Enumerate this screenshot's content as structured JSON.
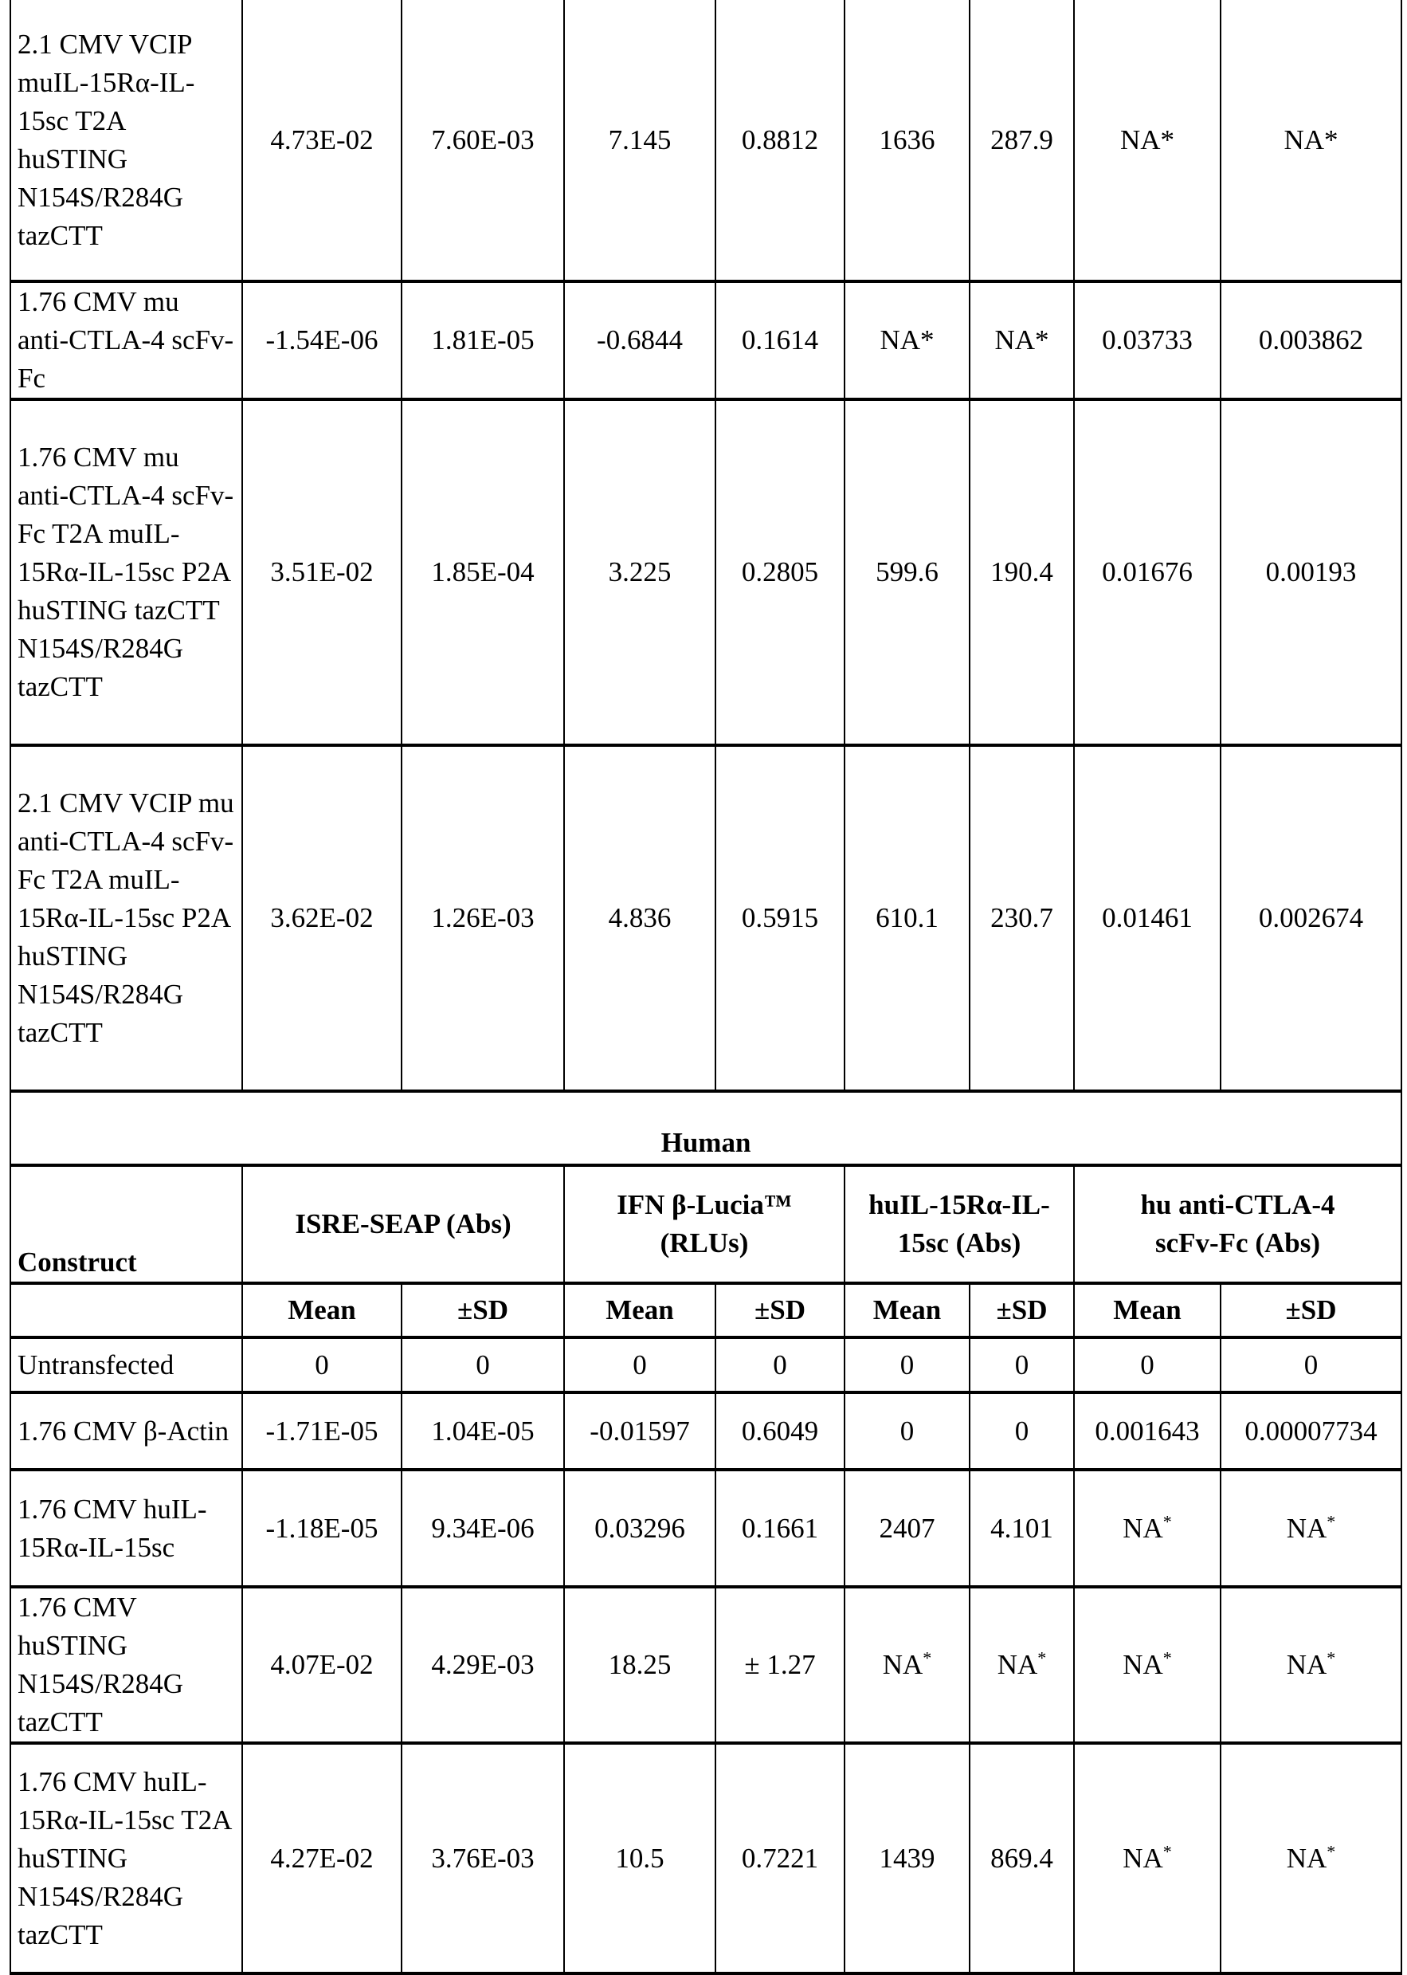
{
  "mouse_rows": [
    {
      "construct": "2.1 CMV VCIP muIL-15Rα-IL-15sc T2A huSTING N154S/R284G tazCTT",
      "values": [
        "4.73E-02",
        "7.60E-03",
        "7.145",
        "0.8812",
        "1636",
        "287.9",
        "NA*",
        "NA*"
      ]
    },
    {
      "construct": "1.76 CMV mu anti-CTLA-4 scFv-Fc",
      "values": [
        "-1.54E-06",
        "1.81E-05",
        "-0.6844",
        "0.1614",
        "NA*",
        "NA*",
        "0.03733",
        "0.003862"
      ]
    },
    {
      "construct": "1.76 CMV mu anti-CTLA-4 scFv-Fc T2A muIL-15Rα-IL-15sc P2A huSTING tazCTT N154S/R284G tazCTT",
      "values": [
        "3.51E-02",
        "1.85E-04",
        "3.225",
        "0.2805",
        "599.6",
        "190.4",
        "0.01676",
        "0.00193"
      ]
    },
    {
      "construct": "2.1 CMV VCIP mu anti-CTLA-4 scFv-Fc T2A muIL-15Rα-IL-15sc P2A huSTING N154S/R284G tazCTT",
      "values": [
        "3.62E-02",
        "1.26E-03",
        "4.836",
        "0.5915",
        "610.1",
        "230.7",
        "0.01461",
        "0.002674"
      ]
    }
  ],
  "human": {
    "section_title": "Human",
    "headers": {
      "construct": "Construct",
      "groups": [
        "ISRE-SEAP (Abs)",
        "IFN β-Lucia™ (RLUs)",
        "huIL-15Rα-IL-15sc (Abs)",
        "hu anti-CTLA-4 scFv-Fc (Abs)"
      ],
      "mean": "Mean",
      "sd": "±SD"
    },
    "rows": [
      {
        "construct": "Untransfected",
        "values": [
          "0",
          "0",
          "0",
          "0",
          "0",
          "0",
          "0",
          "0"
        ]
      },
      {
        "construct": "1.76 CMV β-Actin",
        "values": [
          "-1.71E-05",
          "1.04E-05",
          "-0.01597",
          "0.6049",
          "0",
          "0",
          "0.001643",
          "0.00007734"
        ]
      },
      {
        "construct": "1.76 CMV huIL-15Rα-IL-15sc",
        "values": [
          "-1.18E-05",
          "9.34E-06",
          "0.03296",
          "0.1661",
          "2407",
          "4.101",
          "NA*",
          "NA*"
        ]
      },
      {
        "construct": "1.76 CMV huSTING N154S/R284G tazCTT",
        "values": [
          "4.07E-02",
          "4.29E-03",
          "18.25",
          "± 1.27",
          "NA*",
          "NA*",
          "NA*",
          "NA*"
        ]
      },
      {
        "construct": "1.76 CMV huIL-15Rα-IL-15sc T2A huSTING N154S/R284G tazCTT",
        "values": [
          "4.27E-02",
          "3.76E-03",
          "10.5",
          "0.7221",
          "1439",
          "869.4",
          "NA*",
          "NA*"
        ]
      }
    ]
  }
}
